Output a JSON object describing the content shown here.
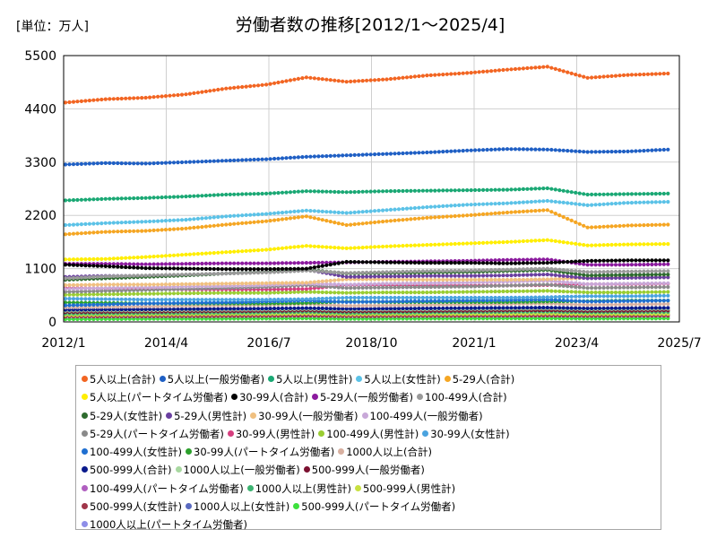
{
  "chart_data": {
    "type": "line",
    "title": "労働者数の推移[2012/1～2025/4]",
    "unit_label": "[単位：万人]",
    "x_tick_labels": [
      "2012/1",
      "2014/4",
      "2016/7",
      "2018/10",
      "2021/1",
      "2023/4",
      "2025/7"
    ],
    "y_tick_labels": [
      "0",
      "1100",
      "2200",
      "3300",
      "4400",
      "5500"
    ],
    "x_range": [
      "2012/1",
      "2025/7"
    ],
    "ylim": [
      0,
      5500
    ],
    "grid": true,
    "legend_position": "bottom",
    "series": [
      {
        "name": "5人以上(合計)",
        "color": "#f26522",
        "values": [
          4530,
          4600,
          4630,
          4700,
          4820,
          4900,
          5050,
          4960,
          5010,
          5090,
          5140,
          5210,
          5270,
          5040,
          5100,
          5130
        ]
      },
      {
        "name": "5人以上(一般労働者)",
        "color": "#1f5fc4",
        "values": [
          3250,
          3280,
          3270,
          3300,
          3330,
          3360,
          3410,
          3440,
          3470,
          3500,
          3540,
          3570,
          3560,
          3510,
          3520,
          3560
        ]
      },
      {
        "name": "5人以上(男性計)",
        "color": "#1aa874",
        "values": [
          2510,
          2540,
          2560,
          2590,
          2630,
          2650,
          2700,
          2680,
          2700,
          2710,
          2720,
          2730,
          2760,
          2630,
          2640,
          2650
        ]
      },
      {
        "name": "5人以上(女性計)",
        "color": "#5bc2e7",
        "values": [
          2000,
          2040,
          2070,
          2110,
          2180,
          2230,
          2300,
          2250,
          2310,
          2370,
          2420,
          2450,
          2500,
          2410,
          2460,
          2480
        ]
      },
      {
        "name": "5-29人(合計)",
        "color": "#f5a623",
        "values": [
          1810,
          1860,
          1880,
          1930,
          2010,
          2080,
          2180,
          2000,
          2080,
          2150,
          2200,
          2260,
          2310,
          1950,
          1990,
          2010
        ]
      },
      {
        "name": "5人以上(パートタイム労働者)",
        "color": "#ffee00",
        "values": [
          1290,
          1300,
          1340,
          1390,
          1440,
          1490,
          1570,
          1520,
          1560,
          1590,
          1620,
          1650,
          1690,
          1580,
          1600,
          1610
        ]
      },
      {
        "name": "30-99人(合計)",
        "color": "#000000",
        "values": [
          1180,
          1150,
          1110,
          1100,
          1090,
          1090,
          1100,
          1240,
          1230,
          1220,
          1220,
          1210,
          1220,
          1260,
          1270,
          1270
        ]
      },
      {
        "name": "5-29人(一般労働者)",
        "color": "#8b1a9e",
        "values": [
          1200,
          1200,
          1190,
          1200,
          1210,
          1210,
          1220,
          1230,
          1240,
          1250,
          1260,
          1280,
          1290,
          1180,
          1180,
          1190
        ]
      },
      {
        "name": "100-499人(合計)",
        "color": "#999999",
        "values": [
          900,
          940,
          960,
          980,
          1000,
          1020,
          1060,
          1010,
          1030,
          1050,
          1060,
          1080,
          1100,
          1030,
          1040,
          1050
        ]
      },
      {
        "name": "5-29人(女性計)",
        "color": "#2e6b2e",
        "values": [
          870,
          900,
          930,
          960,
          1000,
          1030,
          1080,
          1000,
          1010,
          1020,
          1030,
          1050,
          1070,
          960,
          970,
          980
        ]
      },
      {
        "name": "5-29人(男性計)",
        "color": "#6a3fa0",
        "values": [
          930,
          950,
          950,
          970,
          1000,
          1030,
          1080,
          930,
          940,
          950,
          950,
          960,
          980,
          900,
          910,
          920
        ]
      },
      {
        "name": "30-99人(一般労働者)",
        "color": "#f0c080",
        "values": [
          760,
          770,
          770,
          780,
          790,
          800,
          810,
          880,
          880,
          870,
          870,
          870,
          880,
          910,
          920,
          920
        ]
      },
      {
        "name": "100-499人(一般労働者)",
        "color": "#c8a8d8",
        "values": [
          680,
          700,
          710,
          730,
          740,
          760,
          790,
          770,
          790,
          800,
          810,
          830,
          850,
          780,
          790,
          800
        ]
      },
      {
        "name": "5-29人(パートタイム労働者)",
        "color": "#8a8a8a",
        "values": [
          620,
          640,
          660,
          680,
          700,
          720,
          760,
          700,
          710,
          720,
          730,
          750,
          770,
          700,
          710,
          720
        ]
      },
      {
        "name": "30-99人(男性計)",
        "color": "#d63f7f",
        "values": [
          700,
          690,
          680,
          670,
          670,
          670,
          680,
          760,
          760,
          750,
          750,
          750,
          760,
          780,
          780,
          790
        ]
      },
      {
        "name": "100-499人(男性計)",
        "color": "#9acd32",
        "values": [
          560,
          570,
          580,
          590,
          600,
          600,
          620,
          600,
          610,
          610,
          620,
          630,
          640,
          610,
          610,
          620
        ]
      },
      {
        "name": "30-99人(女性計)",
        "color": "#4aa3df",
        "values": [
          480,
          470,
          460,
          460,
          460,
          460,
          470,
          500,
          500,
          500,
          500,
          500,
          510,
          530,
          530,
          540
        ]
      },
      {
        "name": "100-499人(女性計)",
        "color": "#1f6fd1",
        "values": [
          340,
          360,
          380,
          390,
          400,
          420,
          440,
          410,
          420,
          430,
          440,
          450,
          460,
          420,
          430,
          440
        ]
      },
      {
        "name": "30-99人(パートタイム労働者)",
        "color": "#2ca02c",
        "values": [
          400,
          390,
          380,
          380,
          380,
          380,
          390,
          420,
          410,
          410,
          410,
          410,
          420,
          430,
          440,
          440
        ]
      },
      {
        "name": "1000人以上(合計)",
        "color": "#d8b0a0",
        "values": [
          300,
          310,
          320,
          330,
          340,
          350,
          370,
          330,
          340,
          350,
          360,
          370,
          380,
          350,
          360,
          370
        ]
      },
      {
        "name": "500-999人(合計)",
        "color": "#0a1a8c",
        "values": [
          250,
          255,
          260,
          265,
          270,
          275,
          285,
          270,
          275,
          280,
          285,
          290,
          295,
          280,
          285,
          290
        ]
      },
      {
        "name": "1000人以上(一般労働者)",
        "color": "#a8d8a0",
        "values": [
          230,
          235,
          240,
          245,
          250,
          255,
          265,
          250,
          255,
          260,
          265,
          270,
          275,
          260,
          265,
          270
        ]
      },
      {
        "name": "500-999人(一般労働者)",
        "color": "#7b1030",
        "values": [
          200,
          205,
          210,
          215,
          220,
          225,
          235,
          215,
          220,
          225,
          230,
          235,
          240,
          225,
          230,
          235
        ]
      },
      {
        "name": "100-499人(パートタイム労働者)",
        "color": "#b05fc0",
        "values": [
          220,
          230,
          240,
          250,
          260,
          265,
          275,
          255,
          260,
          265,
          270,
          275,
          285,
          260,
          265,
          270
        ]
      },
      {
        "name": "1000人以上(男性計)",
        "color": "#3cb371",
        "values": [
          170,
          175,
          180,
          185,
          190,
          195,
          205,
          185,
          190,
          195,
          200,
          205,
          210,
          195,
          200,
          205
        ]
      },
      {
        "name": "500-999人(男性計)",
        "color": "#c8e040",
        "values": [
          140,
          145,
          150,
          155,
          160,
          162,
          170,
          155,
          158,
          160,
          162,
          165,
          170,
          160,
          162,
          165
        ]
      },
      {
        "name": "500-999人(女性計)",
        "color": "#a0364a",
        "values": [
          110,
          112,
          115,
          118,
          120,
          122,
          128,
          118,
          120,
          122,
          125,
          128,
          130,
          122,
          124,
          126
        ]
      },
      {
        "name": "1000人以上(女性計)",
        "color": "#5a6ac0",
        "values": [
          125,
          128,
          132,
          136,
          140,
          144,
          150,
          138,
          142,
          146,
          150,
          154,
          158,
          146,
          150,
          154
        ]
      },
      {
        "name": "500-999人(パートタイム労働者)",
        "color": "#3de03d",
        "values": [
          55,
          57,
          60,
          62,
          64,
          66,
          70,
          62,
          64,
          66,
          68,
          70,
          72,
          66,
          68,
          70
        ]
      },
      {
        "name": "1000人以上(パートタイム労働者)",
        "color": "#8e8ee8",
        "values": [
          70,
          72,
          75,
          78,
          80,
          82,
          88,
          78,
          80,
          82,
          85,
          88,
          90,
          82,
          84,
          86
        ]
      }
    ]
  }
}
